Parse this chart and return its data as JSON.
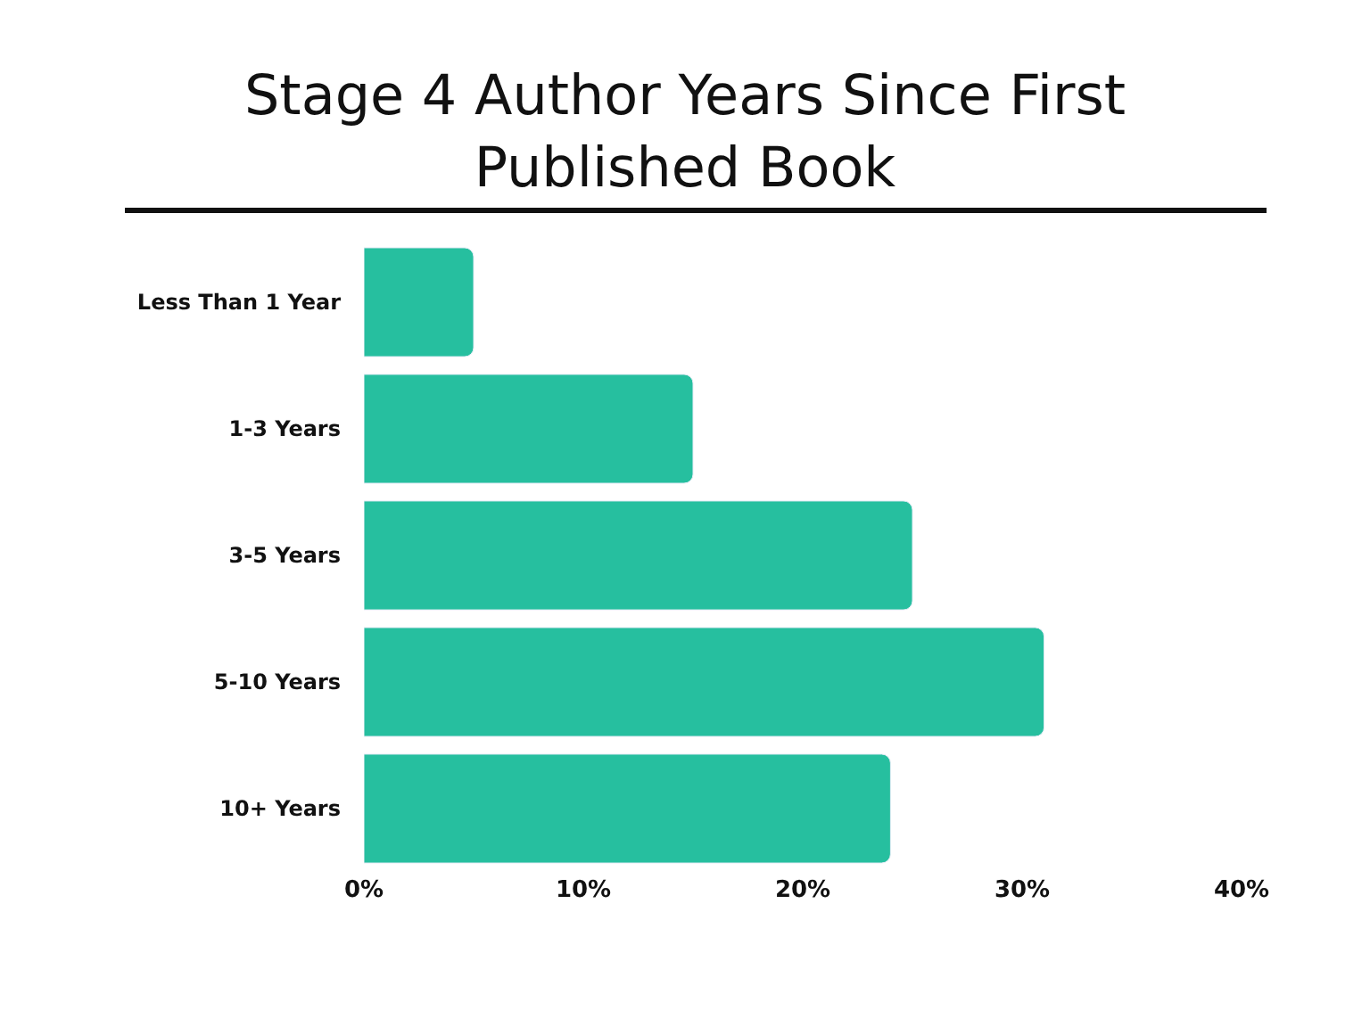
{
  "chart_data": {
    "type": "bar",
    "title": "Stage 4 Author Years Since First Published Book",
    "orientation": "horizontal",
    "categories": [
      "Less Than 1 Year",
      "1-3 Years",
      "3-5 Years",
      "5-10 Years",
      "10+ Years"
    ],
    "values": [
      5,
      15,
      25,
      31,
      24
    ],
    "color": "#26bf9f",
    "xlim": [
      0,
      40
    ],
    "xticks": [
      {
        "value": 0,
        "label": "0%"
      },
      {
        "value": 10,
        "label": "10%"
      },
      {
        "value": 20,
        "label": "20%"
      },
      {
        "value": 30,
        "label": "30%"
      },
      {
        "value": 40,
        "label": "40%"
      }
    ]
  }
}
